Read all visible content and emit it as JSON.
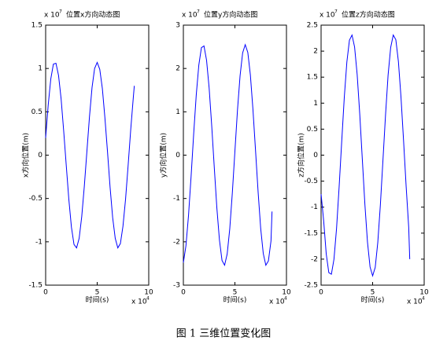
{
  "chart_data": [
    {
      "type": "line",
      "title": "位置x方向动态图",
      "xlabel": "时间(s)",
      "ylabel": "x方向位置(m)",
      "x_multiplier": {
        "base": "x 10",
        "exponent": "4"
      },
      "y_multiplier": {
        "base": "x 10",
        "exponent": "7"
      },
      "color": "#0000ff",
      "x": [
        0,
        0.25,
        0.5,
        0.75,
        1,
        1.25,
        1.5,
        1.75,
        2,
        2.25,
        2.5,
        2.75,
        3,
        3.25,
        3.5,
        3.75,
        4,
        4.25,
        4.5,
        4.75,
        5,
        5.25,
        5.5,
        5.75,
        6,
        6.25,
        6.5,
        6.75,
        7,
        7.25,
        7.5,
        7.75,
        8,
        8.25,
        8.5,
        8.6
      ],
      "values": [
        0.2,
        0.58,
        0.88,
        1.05,
        1.06,
        0.92,
        0.65,
        0.28,
        -0.12,
        -0.51,
        -0.83,
        -1.03,
        -1.07,
        -0.96,
        -0.71,
        -0.36,
        0.04,
        0.44,
        0.78,
        1.0,
        1.07,
        0.99,
        0.77,
        0.43,
        0.04,
        -0.37,
        -0.72,
        -0.96,
        -1.07,
        -1.02,
        -0.82,
        -0.51,
        -0.12,
        0.29,
        0.66,
        0.8
      ],
      "xlim": [
        0,
        10
      ],
      "xticks": [
        0,
        5,
        10
      ],
      "ylim": [
        -1.5,
        1.5
      ],
      "yticks": [
        -1.5,
        -1,
        -0.5,
        0,
        0.5,
        1,
        1.5
      ]
    },
    {
      "type": "line",
      "title": "位置y方向动态图",
      "xlabel": "时间(s)",
      "ylabel": "y方向位置(m)",
      "x_multiplier": {
        "base": "x 10",
        "exponent": "4"
      },
      "y_multiplier": {
        "base": "x 10",
        "exponent": "7"
      },
      "color": "#0000ff",
      "x": [
        0,
        0.25,
        0.5,
        0.75,
        1,
        1.25,
        1.5,
        1.75,
        2,
        2.25,
        2.5,
        2.75,
        3,
        3.25,
        3.5,
        3.75,
        4,
        4.25,
        4.5,
        4.75,
        5,
        5.25,
        5.5,
        5.75,
        6,
        6.25,
        6.5,
        6.75,
        7,
        7.25,
        7.5,
        7.75,
        8,
        8.25,
        8.5,
        8.6
      ],
      "values": [
        -2.48,
        -2.09,
        -1.39,
        -0.49,
        0.49,
        1.39,
        2.08,
        2.48,
        2.52,
        2.19,
        1.55,
        0.68,
        -0.29,
        -1.22,
        -1.96,
        -2.43,
        -2.54,
        -2.28,
        -1.7,
        -0.87,
        0.09,
        1.04,
        1.83,
        2.36,
        2.55,
        2.37,
        1.85,
        1.05,
        0.11,
        -0.85,
        -1.69,
        -2.27,
        -2.54,
        -2.44,
        -1.98,
        -1.3
      ],
      "xlim": [
        0,
        10
      ],
      "xticks": [
        0,
        5,
        10
      ],
      "ylim": [
        -3,
        3
      ],
      "yticks": [
        -3,
        -2,
        -1,
        0,
        1,
        2,
        3
      ]
    },
    {
      "type": "line",
      "title": "位置z方向动态图",
      "xlabel": "时间(s)",
      "ylabel": "z方向位置(m)",
      "x_multiplier": {
        "base": "x 10",
        "exponent": "4"
      },
      "y_multiplier": {
        "base": "x 10",
        "exponent": "7"
      },
      "color": "#0000ff",
      "x": [
        0,
        0.25,
        0.5,
        0.75,
        1,
        1.25,
        1.5,
        1.75,
        2,
        2.25,
        2.5,
        2.75,
        3,
        3.25,
        3.5,
        3.75,
        4,
        4.25,
        4.5,
        4.75,
        5,
        5.25,
        5.5,
        5.75,
        6,
        6.25,
        6.5,
        6.75,
        7,
        7.25,
        7.5,
        7.75,
        8,
        8.25,
        8.5,
        8.6
      ],
      "values": [
        -0.75,
        -1.26,
        -1.9,
        -2.26,
        -2.29,
        -2.0,
        -1.41,
        -0.61,
        0.26,
        1.11,
        1.79,
        2.21,
        2.31,
        2.08,
        1.55,
        0.79,
        -0.08,
        -0.95,
        -1.67,
        -2.15,
        -2.32,
        -2.16,
        -1.68,
        -0.96,
        -0.1,
        0.77,
        1.54,
        2.07,
        2.31,
        2.22,
        1.8,
        1.12,
        0.28,
        -0.6,
        -1.39,
        -2.0
      ],
      "xlim": [
        0,
        10
      ],
      "xticks": [
        0,
        5,
        10
      ],
      "ylim": [
        -2.5,
        2.5
      ],
      "yticks": [
        -2.5,
        -2,
        -1.5,
        -1,
        -0.5,
        0,
        0.5,
        1,
        1.5,
        2,
        2.5
      ]
    }
  ],
  "caption": "图 1  三维位置变化图"
}
